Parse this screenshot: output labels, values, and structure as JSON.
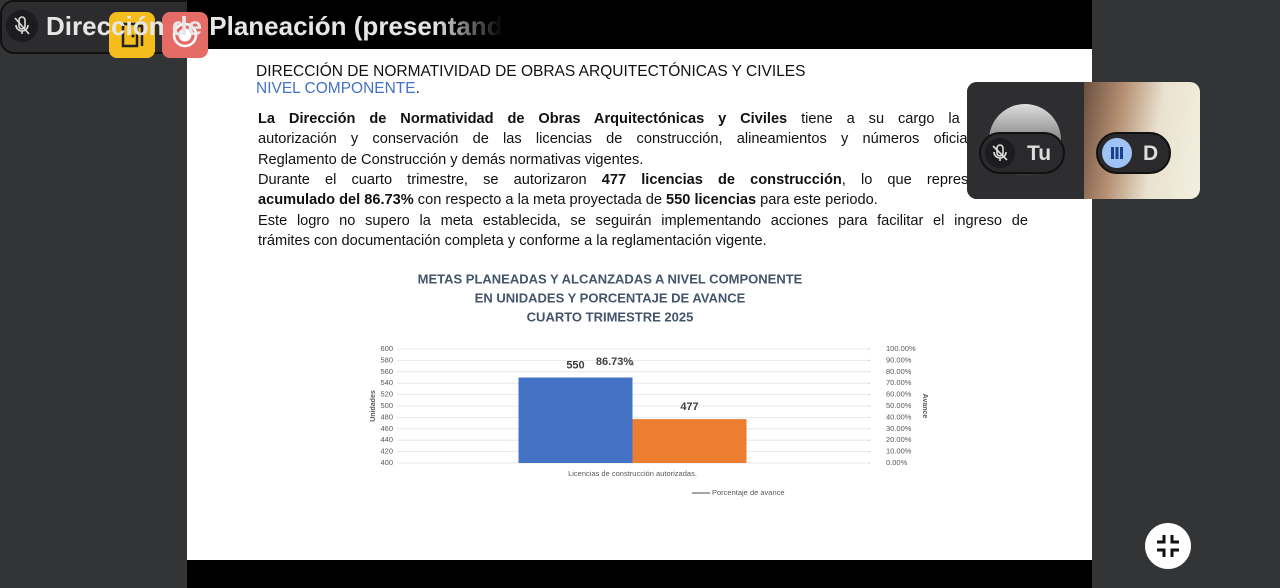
{
  "slide": {
    "title": "DIRECCIÓN DE NORMATIVIDAD DE OBRAS ARQUITECTÓNICAS Y CIVILES",
    "title_highlight": "NIVEL COMPONENTE",
    "title_end": ".",
    "lines": [
      {
        "justify": true,
        "runs": [
          {
            "text": "La Dirección de Normatividad de Obras Arquitectónicas y Civiles",
            "bold": true
          },
          {
            "text": " tiene a su cargo la revisión,",
            "bold": false
          }
        ]
      },
      {
        "justify": true,
        "runs": [
          {
            "text": "autorización y conservación de las licencias de construcción, alineamientos y números oficiales, con",
            "bold": false
          }
        ]
      },
      {
        "justify": false,
        "runs": [
          {
            "text": "Reglamento de Construcción y demás normativas vigentes.",
            "bold": false
          }
        ]
      },
      {
        "justify": true,
        "runs": [
          {
            "text": "Durante el cuarto trimestre, se autorizaron ",
            "bold": false
          },
          {
            "text": "477 licencias de construcción",
            "bold": true
          },
          {
            "text": ", lo que representó un",
            "bold": false
          }
        ]
      },
      {
        "justify": false,
        "runs": [
          {
            "text": "acumulado del 86.73%",
            "bold": true
          },
          {
            "text": " con respecto a la meta proyectada de ",
            "bold": false
          },
          {
            "text": "550 licencias",
            "bold": true
          },
          {
            "text": " para este periodo.",
            "bold": false
          }
        ]
      },
      {
        "justify": true,
        "runs": [
          {
            "text": "Este logro no supero la meta establecida, se seguirán implementando acciones para facilitar el ingreso de",
            "bold": false
          }
        ]
      },
      {
        "justify": false,
        "runs": [
          {
            "text": "trámites con documentación completa y conforme a la reglamentación vigente.",
            "bold": false
          }
        ]
      }
    ]
  },
  "chart_data": {
    "type": "bar",
    "title": [
      "METAS PLANEADAS Y ALCANZADAS A NIVEL COMPONENTE",
      "EN UNIDADES Y PORCENTAJE DE AVANCE",
      "CUARTO TRIMESTRE 2025"
    ],
    "categories": [
      "Licencias de construcción autorizadas."
    ],
    "y_label": "Unidades",
    "y2_label": "Avance",
    "ylim": [
      400,
      600
    ],
    "yticks": [
      400,
      420,
      440,
      460,
      480,
      500,
      520,
      540,
      560,
      580,
      600
    ],
    "y2lim": [
      0,
      100
    ],
    "y2ticks": [
      {
        "value": 0,
        "label": "0.00%"
      },
      {
        "value": 10,
        "label": "10.00%"
      },
      {
        "value": 20,
        "label": "20.00%"
      },
      {
        "value": 30,
        "label": "30.00%"
      },
      {
        "value": 40,
        "label": "40.00%"
      },
      {
        "value": 50,
        "label": "50.00%"
      },
      {
        "value": 60,
        "label": "60.00%"
      },
      {
        "value": 70,
        "label": "70.00%"
      },
      {
        "value": 80,
        "label": "80.00%"
      },
      {
        "value": 90,
        "label": "90.00%"
      },
      {
        "value": 100,
        "label": "100.00%"
      }
    ],
    "grid": true,
    "series": [
      {
        "color": "#4472c4",
        "values": [
          550
        ]
      },
      {
        "color": "#ed7d31",
        "values": [
          477
        ]
      },
      {
        "name": "Porcentaje de avance",
        "color": "#a5a5a5",
        "values": [
          86.73
        ],
        "value_labels": [
          "86.73%"
        ],
        "axis": "y2"
      }
    ]
  },
  "participants": [
    "Tu",
    "D"
  ],
  "presenter": "Dirección de Planeación (presentand"
}
